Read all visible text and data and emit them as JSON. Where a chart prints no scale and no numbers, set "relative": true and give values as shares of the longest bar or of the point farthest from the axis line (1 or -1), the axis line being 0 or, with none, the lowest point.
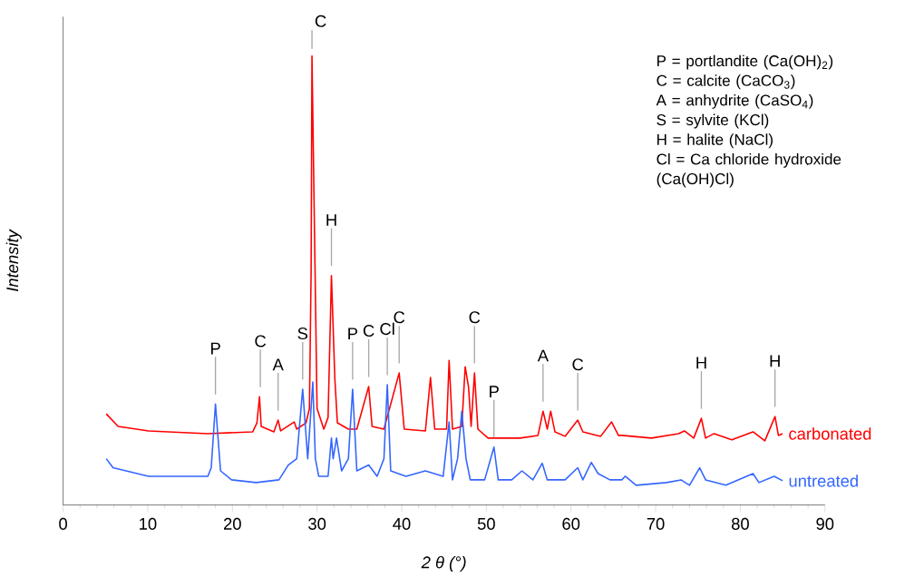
{
  "chart_data": {
    "type": "line",
    "xlabel": "2 θ  (°)",
    "ylabel": "Intensity",
    "relative": true,
    "xlim": [
      0,
      90
    ],
    "xticks": [
      0,
      10,
      20,
      30,
      40,
      50,
      60,
      70,
      80,
      90
    ],
    "legend": false,
    "grid": false,
    "series": [
      {
        "name": "carbonated",
        "color": "#ff0000",
        "x": [
          5.1,
          6.5,
          10.1,
          17.1,
          22.4,
          22.9,
          23.2,
          23.4,
          24.9,
          25.4,
          25.7,
          27.3,
          27.6,
          28.7,
          29.1,
          29.3,
          29.4,
          30.0,
          30.8,
          31.3,
          31.7,
          32.1,
          32.4,
          33.7,
          34.7,
          36.1,
          36.5,
          37.9,
          39.7,
          40.3,
          42.8,
          43.4,
          43.9,
          45.3,
          45.6,
          46.0,
          47.1,
          47.5,
          47.9,
          48.2,
          48.6,
          49.0,
          50.2,
          54.0,
          56.1,
          56.7,
          57.2,
          57.6,
          58.1,
          59.3,
          60.8,
          61.4,
          63.5,
          64.8,
          65.6,
          66.0,
          69.5,
          72.7,
          73.4,
          74.5,
          75.4,
          75.9,
          76.9,
          79.0,
          81.5,
          82.9,
          84.1,
          84.5,
          85.0
        ],
        "values": [
          0.203,
          0.175,
          0.165,
          0.159,
          0.163,
          0.183,
          0.241,
          0.175,
          0.163,
          0.189,
          0.165,
          0.185,
          0.169,
          0.183,
          0.215,
          0.521,
          1.0,
          0.215,
          0.169,
          0.195,
          0.511,
          0.282,
          0.183,
          0.169,
          0.169,
          0.264,
          0.175,
          0.169,
          0.294,
          0.169,
          0.165,
          0.284,
          0.169,
          0.169,
          0.322,
          0.169,
          0.175,
          0.308,
          0.262,
          0.175,
          0.294,
          0.169,
          0.149,
          0.149,
          0.155,
          0.209,
          0.169,
          0.209,
          0.163,
          0.153,
          0.189,
          0.163,
          0.153,
          0.185,
          0.155,
          0.155,
          0.149,
          0.159,
          0.165,
          0.149,
          0.193,
          0.149,
          0.159,
          0.145,
          0.163,
          0.143,
          0.197,
          0.155,
          0.159
        ]
      },
      {
        "name": "untreated",
        "color": "#3366ff",
        "x": [
          5.1,
          5.9,
          10.1,
          17.1,
          17.5,
          18.0,
          18.6,
          19.9,
          22.8,
          25.5,
          26.6,
          27.6,
          28.3,
          28.9,
          29.5,
          29.8,
          30.2,
          31.3,
          31.7,
          31.9,
          32.3,
          32.9,
          33.7,
          34.2,
          34.7,
          36.1,
          37.1,
          37.9,
          38.3,
          38.7,
          40.5,
          42.8,
          44.9,
          45.6,
          46.0,
          46.6,
          47.1,
          47.6,
          48.1,
          49.8,
          50.9,
          51.4,
          53.0,
          54.2,
          55.5,
          56.6,
          57.2,
          59.3,
          60.8,
          61.4,
          62.4,
          63.2,
          64.6,
          66.0,
          66.4,
          67.7,
          71.3,
          73.0,
          74.0,
          75.2,
          75.9,
          78.3,
          81.5,
          82.2,
          84.0,
          85.0
        ],
        "values": [
          0.103,
          0.083,
          0.064,
          0.064,
          0.083,
          0.225,
          0.076,
          0.056,
          0.05,
          0.056,
          0.089,
          0.103,
          0.258,
          0.103,
          0.274,
          0.103,
          0.064,
          0.064,
          0.149,
          0.103,
          0.149,
          0.076,
          0.103,
          0.258,
          0.076,
          0.089,
          0.064,
          0.103,
          0.268,
          0.076,
          0.064,
          0.076,
          0.064,
          0.185,
          0.056,
          0.103,
          0.209,
          0.103,
          0.056,
          0.056,
          0.129,
          0.056,
          0.056,
          0.076,
          0.056,
          0.093,
          0.056,
          0.056,
          0.083,
          0.056,
          0.095,
          0.07,
          0.056,
          0.056,
          0.064,
          0.044,
          0.05,
          0.056,
          0.044,
          0.083,
          0.056,
          0.044,
          0.07,
          0.05,
          0.064,
          0.054
        ]
      }
    ],
    "annotations": [
      {
        "text": "P",
        "x": 18.0,
        "y": 0.225
      },
      {
        "text": "C",
        "x": 23.3,
        "y": 0.241
      },
      {
        "text": "A",
        "x": 25.4,
        "y": 0.189
      },
      {
        "text": "S",
        "x": 28.3,
        "y": 0.258
      },
      {
        "text": "C",
        "x": 29.4,
        "y": 1.0
      },
      {
        "text": "H",
        "x": 31.7,
        "y": 0.511
      },
      {
        "text": "P",
        "x": 34.2,
        "y": 0.258
      },
      {
        "text": "C",
        "x": 36.1,
        "y": 0.264
      },
      {
        "text": "Cl",
        "x": 38.3,
        "y": 0.268
      },
      {
        "text": "C",
        "x": 39.7,
        "y": 0.294
      },
      {
        "text": "C",
        "x": 48.6,
        "y": 0.294
      },
      {
        "text": "P",
        "x": 50.9,
        "y": 0.129
      },
      {
        "text": "A",
        "x": 56.7,
        "y": 0.209
      },
      {
        "text": "C",
        "x": 60.8,
        "y": 0.189
      },
      {
        "text": "H",
        "x": 75.4,
        "y": 0.193
      },
      {
        "text": "H",
        "x": 84.1,
        "y": 0.197
      },
      "P  = portlandite (Ca(OH)$_{2}$)",
      "C  = calcite (CaCO$_{3}$)",
      "A  = anhydrite (CaSO$_{4}$)",
      "S  = sylvite (KCl)",
      "H  = halite (NaCl)",
      "Cl = Ca chloride hydroxide (Ca(OH)Cl)"
    ]
  }
}
